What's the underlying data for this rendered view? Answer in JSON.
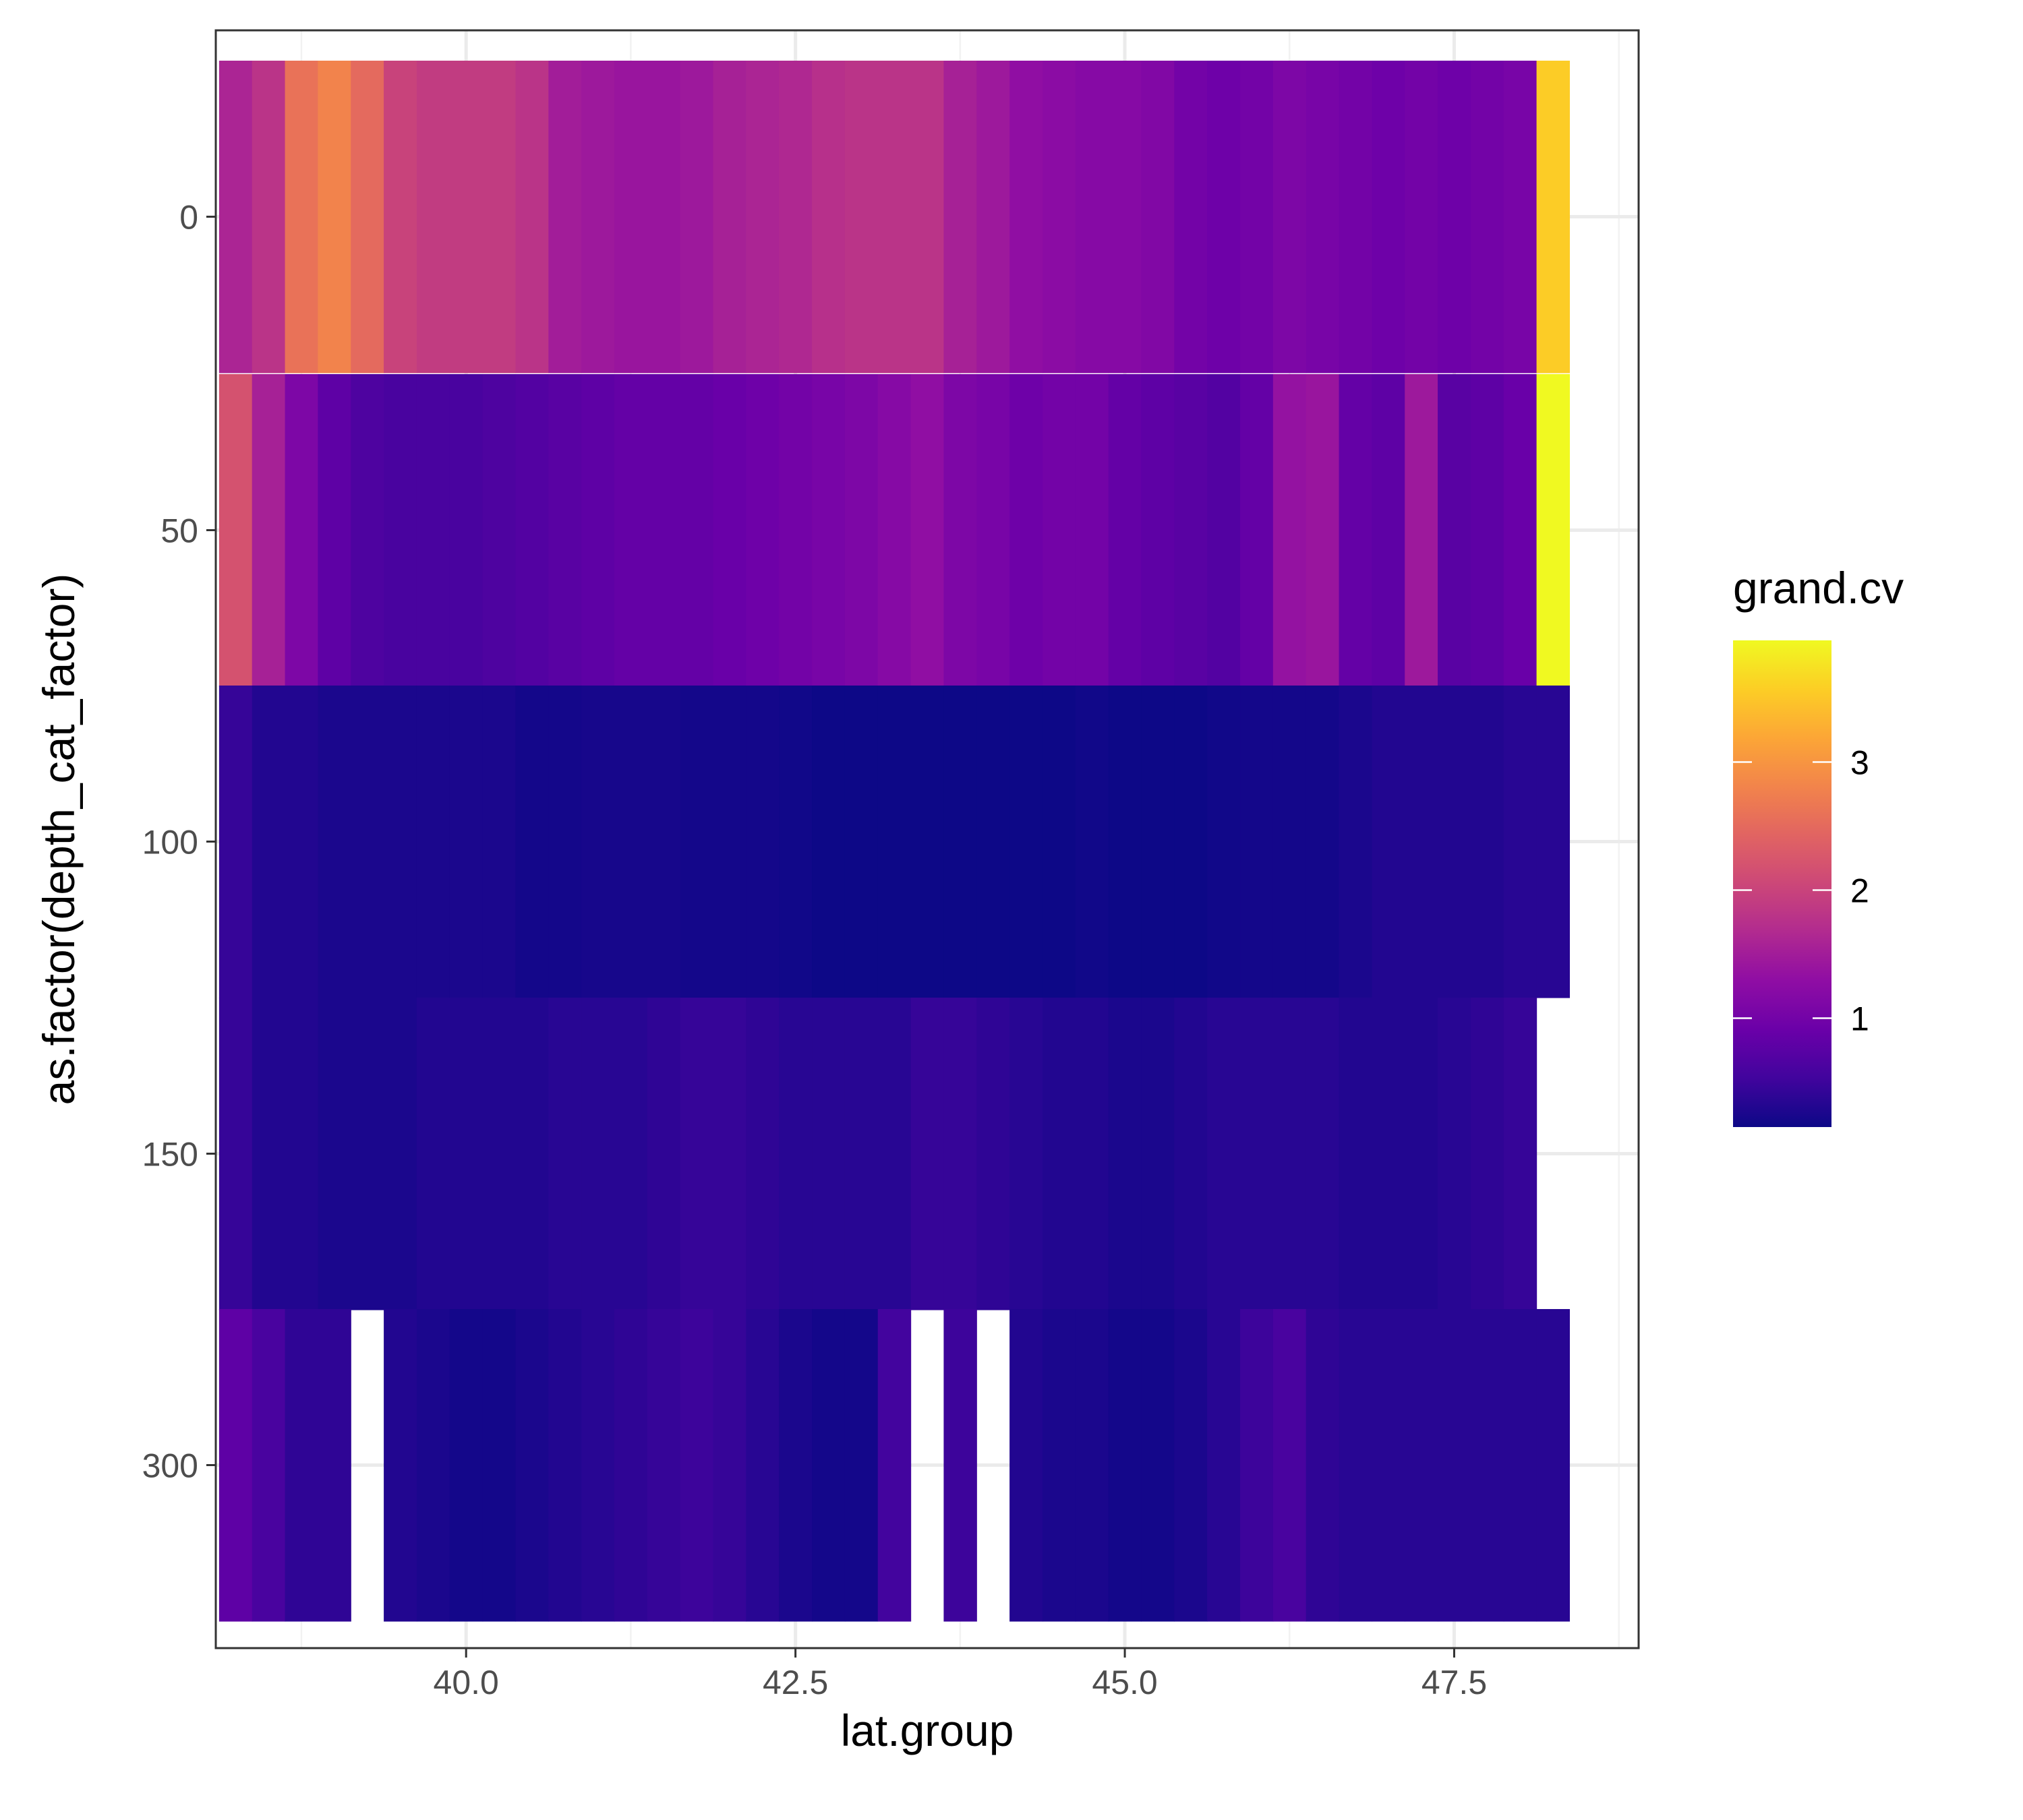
{
  "chart_data": {
    "type": "heatmap",
    "xlabel": "lat.group",
    "ylabel": "as.factor(depth_cat_factor)",
    "x_ticks": [
      40.0,
      42.5,
      45.0,
      47.5
    ],
    "x_tick_labels": [
      "40.0",
      "42.5",
      "45.0",
      "47.5"
    ],
    "xlim": [
      38.1,
      48.9
    ],
    "x_step": 0.25,
    "x": [
      38.25,
      38.5,
      38.75,
      39.0,
      39.25,
      39.5,
      39.75,
      40.0,
      40.25,
      40.5,
      40.75,
      41.0,
      41.25,
      41.5,
      41.75,
      42.0,
      42.25,
      42.5,
      42.75,
      43.0,
      43.25,
      43.5,
      43.75,
      44.0,
      44.25,
      44.5,
      44.75,
      45.0,
      45.25,
      45.5,
      45.75,
      46.0,
      46.25,
      46.5,
      46.75,
      47.0,
      47.25,
      47.5,
      47.75,
      48.0,
      48.25,
      48.5
    ],
    "categories": [
      "0",
      "50",
      "100",
      "150",
      "300"
    ],
    "z": [
      [
        1.6,
        1.8,
        2.6,
        2.8,
        2.5,
        2.0,
        1.9,
        1.9,
        1.9,
        1.8,
        1.5,
        1.45,
        1.4,
        1.4,
        1.45,
        1.55,
        1.6,
        1.65,
        1.75,
        1.8,
        1.8,
        1.8,
        1.55,
        1.45,
        1.3,
        1.25,
        1.2,
        1.2,
        1.15,
        1.0,
        0.95,
        1.0,
        1.1,
        1.05,
        1.0,
        0.95,
        1.0,
        0.95,
        1.0,
        1.05,
        3.55
      ],
      [
        2.2,
        1.55,
        1.1,
        0.8,
        0.65,
        0.6,
        0.6,
        0.6,
        0.65,
        0.7,
        0.75,
        0.8,
        0.85,
        0.85,
        0.85,
        0.9,
        0.95,
        1.0,
        1.05,
        1.1,
        1.2,
        1.3,
        1.1,
        1.05,
        0.95,
        1.0,
        1.0,
        0.85,
        0.8,
        0.75,
        0.7,
        0.85,
        1.35,
        1.4,
        0.85,
        0.8,
        1.45,
        0.75,
        0.8,
        0.9,
        3.95
      ],
      [
        0.45,
        0.3,
        0.3,
        0.25,
        0.25,
        0.25,
        0.25,
        0.25,
        0.25,
        0.2,
        0.2,
        0.22,
        0.22,
        0.22,
        0.2,
        0.2,
        0.2,
        0.18,
        0.15,
        0.15,
        0.15,
        0.15,
        0.15,
        0.15,
        0.15,
        0.15,
        0.18,
        0.15,
        0.15,
        0.15,
        0.18,
        0.2,
        0.2,
        0.2,
        0.25,
        0.3,
        0.3,
        0.3,
        0.3,
        0.35,
        0.35
      ],
      [
        0.45,
        0.3,
        0.3,
        0.25,
        0.25,
        0.25,
        0.3,
        0.3,
        0.3,
        0.3,
        0.35,
        0.35,
        0.35,
        0.4,
        0.45,
        0.45,
        0.4,
        0.35,
        0.35,
        0.35,
        0.35,
        0.45,
        0.45,
        0.4,
        0.35,
        0.3,
        0.3,
        0.25,
        0.25,
        0.3,
        0.35,
        0.35,
        0.35,
        0.35,
        0.3,
        0.3,
        0.3,
        0.35,
        0.4,
        0.45,
        null
      ],
      [
        0.8,
        0.6,
        0.4,
        0.4,
        null,
        0.3,
        0.25,
        0.2,
        0.2,
        0.25,
        0.3,
        0.35,
        0.4,
        0.45,
        0.5,
        0.45,
        0.35,
        0.25,
        0.2,
        0.2,
        0.55,
        null,
        0.5,
        null,
        0.3,
        0.25,
        0.25,
        0.2,
        0.2,
        0.25,
        0.35,
        0.5,
        0.6,
        0.4,
        0.35,
        0.35,
        0.35,
        0.35,
        0.35,
        0.35,
        0.35
      ]
    ],
    "row_x_start_index": [
      0,
      0,
      0,
      0,
      0
    ],
    "legend": {
      "title": "grand.cv",
      "ticks": [
        1,
        2,
        3
      ],
      "tick_labels": [
        "1",
        "2",
        "3"
      ],
      "range": [
        0.15,
        3.95
      ],
      "colormap": "plasma"
    },
    "grid": true,
    "legend_position": "right"
  }
}
